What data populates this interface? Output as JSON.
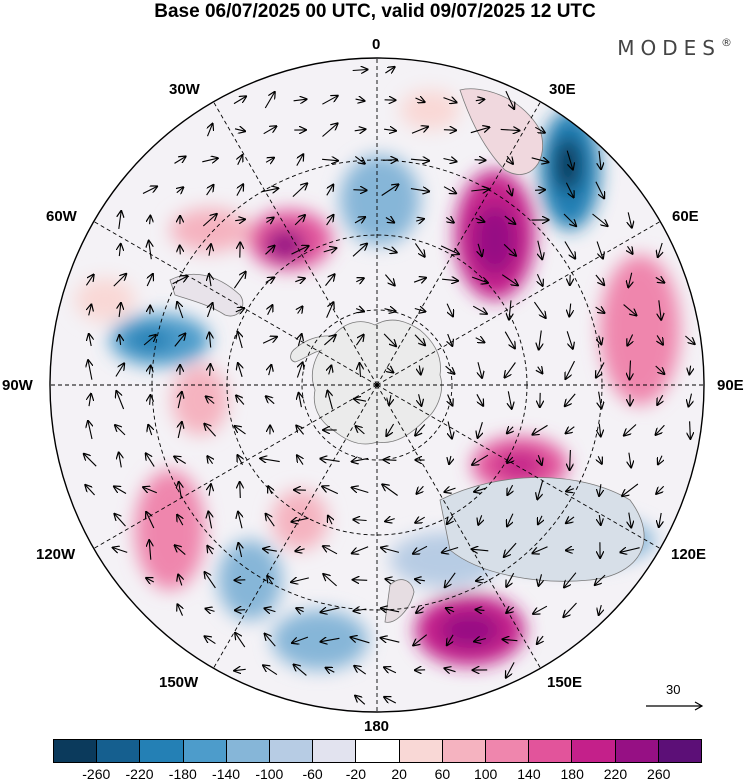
{
  "title": "Base 06/07/2025 00 UTC, valid 09/07/2025 12 UTC",
  "brand": "MODES",
  "brand_mark": "®",
  "longitude_labels": {
    "top": "0",
    "top_left": "30W",
    "top_right": "30E",
    "left_upper": "60W",
    "right_upper": "60E",
    "left": "90W",
    "right": "90E",
    "left_lower": "120W",
    "right_lower": "120E",
    "bottom_left": "150W",
    "bottom_right": "150E",
    "bottom": "180"
  },
  "reference_vector": "30",
  "colorbar": {
    "colors": [
      "#0b3a5c",
      "#155f8f",
      "#2480b5",
      "#4d9ccb",
      "#86b6d8",
      "#b7cce4",
      "#e2e3ef",
      "#ffffff",
      "#f9d8d6",
      "#f5b3c0",
      "#ef86ad",
      "#e2549b",
      "#c4208a",
      "#961084",
      "#5c0f77"
    ],
    "labels": [
      "-260",
      "-220",
      "-180",
      "-140",
      "-100",
      "-60",
      "-20",
      "20",
      "60",
      "100",
      "140",
      "180",
      "220",
      "260"
    ]
  },
  "icons": {
    "antarctica": "antarctica-outline",
    "flow_arrows": "wind-vector-arrows"
  }
}
